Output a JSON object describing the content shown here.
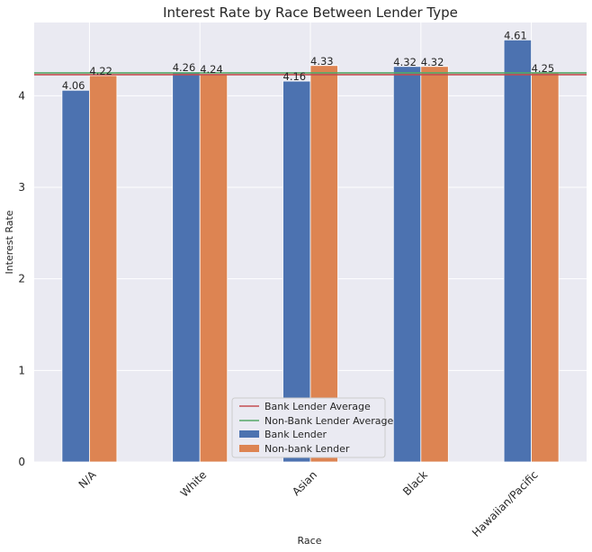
{
  "chart_data": {
    "type": "bar",
    "title": "Interest Rate by Race Between Lender Type",
    "xlabel": "Race",
    "ylabel": "Interest Rate",
    "categories": [
      "N/A",
      "White",
      "Asian",
      "Black",
      "Hawaiian/Pacific"
    ],
    "series": [
      {
        "name": "Bank Lender",
        "values": [
          4.06,
          4.26,
          4.16,
          4.32,
          4.61
        ],
        "labels": [
          "4.06",
          "4.26",
          "4.16",
          "4.32",
          "4.61"
        ],
        "color": "#4c72b0"
      },
      {
        "name": "Non-bank Lender",
        "values": [
          4.22,
          4.24,
          4.33,
          4.32,
          4.25
        ],
        "labels": [
          "4.22",
          "4.24",
          "4.33",
          "4.32",
          "4.25"
        ],
        "color": "#dd8452"
      }
    ],
    "reference_lines": [
      {
        "name": "Bank Lender Average",
        "value": 4.23,
        "color": "#c44e52"
      },
      {
        "name": "Non-Bank Lender Average",
        "value": 4.25,
        "color": "#55a868"
      }
    ],
    "ylim": [
      0,
      4.8
    ],
    "yticks": [
      "0",
      "1",
      "2",
      "3",
      "4"
    ],
    "grid": true,
    "legend": "bottom-center",
    "background": "#eaeaf2",
    "grid_color": "#ffffff"
  }
}
